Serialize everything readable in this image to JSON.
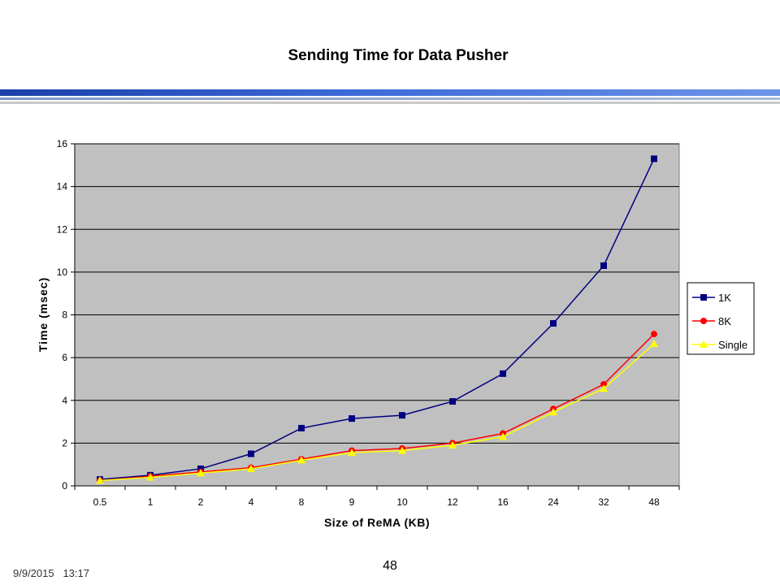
{
  "slide": {
    "title": "Sending Time for Data Pusher",
    "footer_date": "9/9/2015",
    "footer_time": "13:17",
    "page_number": "48"
  },
  "colors": {
    "plot_bg": "#c0c0c0",
    "series_1k": "#000080",
    "series_8k": "#ff0000",
    "series_single": "#ffff00"
  },
  "chart_data": {
    "type": "line",
    "title": "",
    "xlabel": "Size of ReMA (KB)",
    "ylabel": "Time (msec)",
    "ylim": [
      0,
      16
    ],
    "yticks": [
      0,
      2,
      4,
      6,
      8,
      10,
      12,
      14,
      16
    ],
    "grid": true,
    "legend_position": "right",
    "categories": [
      "0.5",
      "1",
      "2",
      "4",
      "8",
      "9",
      "10",
      "12",
      "16",
      "24",
      "32",
      "48"
    ],
    "series": [
      {
        "name": "1K",
        "color": "#000080",
        "marker": "square",
        "values": [
          0.3,
          0.5,
          0.8,
          1.5,
          2.7,
          3.15,
          3.3,
          3.95,
          5.25,
          7.6,
          10.3,
          15.3
        ]
      },
      {
        "name": "8K",
        "color": "#ff0000",
        "marker": "circle",
        "values": [
          0.25,
          0.45,
          0.65,
          0.85,
          1.25,
          1.65,
          1.75,
          2.0,
          2.45,
          3.6,
          4.75,
          7.1
        ]
      },
      {
        "name": "Single",
        "color": "#ffff00",
        "marker": "triangle",
        "values": [
          0.25,
          0.4,
          0.6,
          0.8,
          1.2,
          1.55,
          1.65,
          1.9,
          2.3,
          3.45,
          4.55,
          6.65
        ]
      }
    ]
  }
}
